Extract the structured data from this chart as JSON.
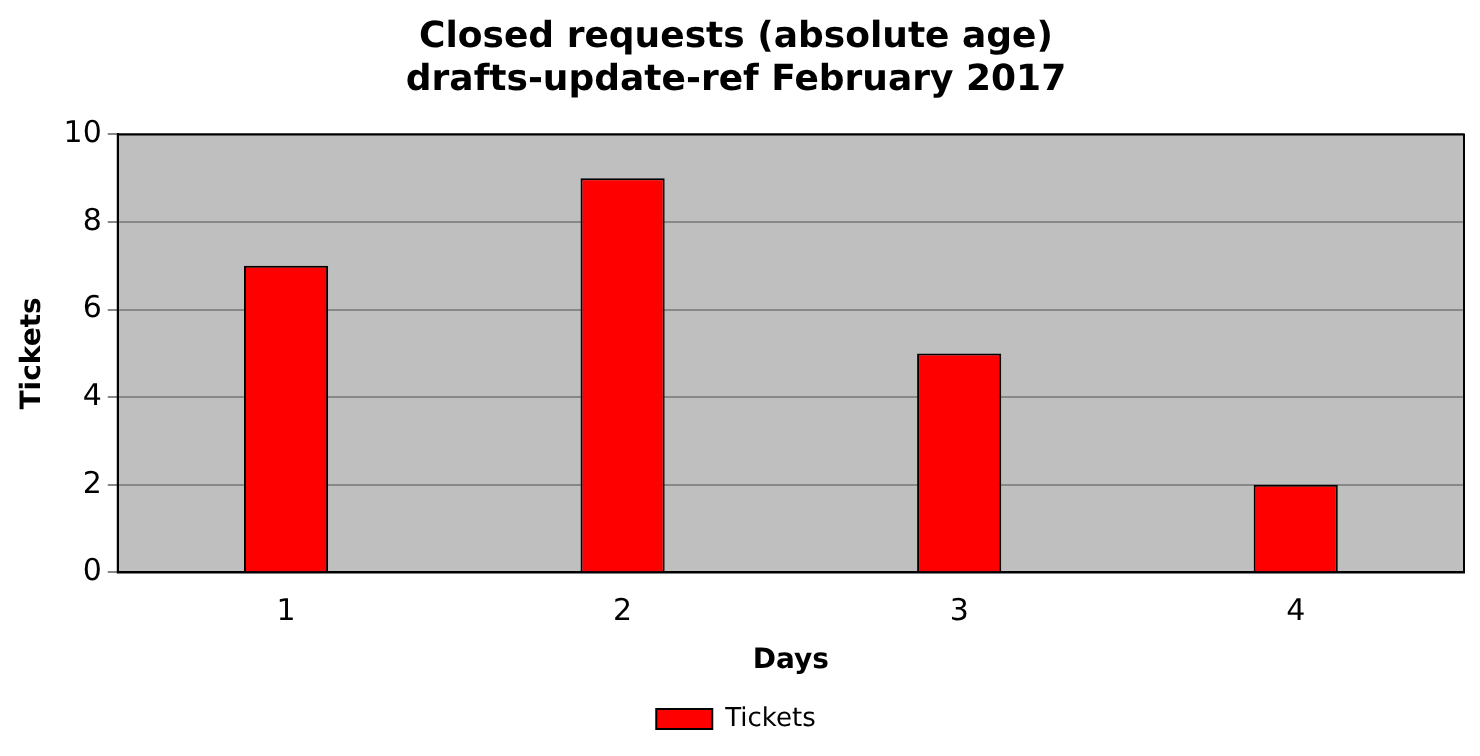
{
  "chart_data": {
    "type": "bar",
    "title": "Closed requests (absolute age)\ndrafts-update-ref February 2017",
    "xlabel": "Days",
    "ylabel": "Tickets",
    "categories": [
      "1",
      "2",
      "3",
      "4"
    ],
    "series": [
      {
        "name": "Tickets",
        "color": "#ff0000",
        "values": [
          7,
          9,
          5,
          2
        ]
      }
    ],
    "ylim": [
      0,
      10
    ],
    "yticks": [
      0,
      2,
      4,
      6,
      8,
      10
    ],
    "grid": "y",
    "legend": "bottom"
  }
}
